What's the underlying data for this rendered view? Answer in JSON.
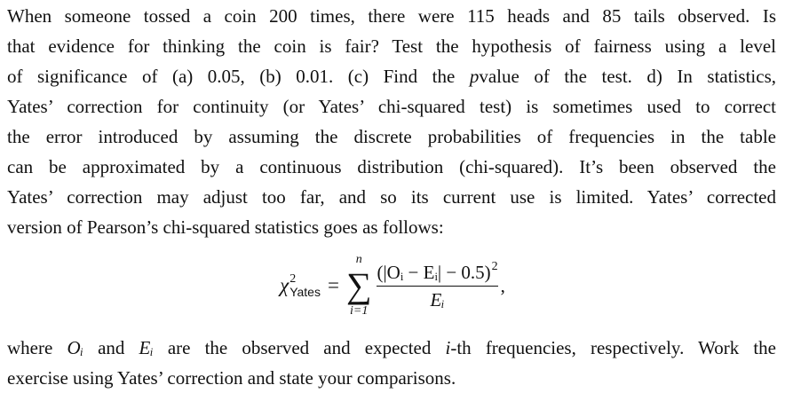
{
  "paragraph1": [
    [
      {
        "t": "When someone tossed a coin 200 times, there were 115 heads and 85 tails observed. Is"
      }
    ],
    [
      {
        "t": "that evidence for thinking the coin is fair? Test the hypothesis of fairness using a level"
      }
    ],
    [
      {
        "t": "of significance of (a) 0.05, (b) 0.01. (c) Find the "
      },
      {
        "t": "p",
        "i": true
      },
      {
        "t": "value of the test. d) In statistics,"
      }
    ],
    [
      {
        "t": "Yates’ correction for continuity (or Yates’ chi-squared test) is sometimes used to correct"
      }
    ],
    [
      {
        "t": "the error introduced by assuming the discrete probabilities of frequencies in the table"
      }
    ],
    [
      {
        "t": "can be approximated by a continuous distribution (chi-squared). It’s been observed the"
      }
    ],
    [
      {
        "t": "Yates’ correction may adjust too far, and so its current use is limited. Yates’ corrected"
      }
    ],
    [
      {
        "t": "version of Pearson’s chi-squared statistics goes as follows:"
      }
    ]
  ],
  "formula": {
    "chi": "χ",
    "chi_sup": "2",
    "chi_sub": "Yates",
    "eq": "=",
    "sum": "∑",
    "upper": "n",
    "lower": "i=1",
    "numerator": "(|Oᵢ − Eᵢ| − 0.5)",
    "num_sup": "2",
    "denominator": "Eᵢ",
    "comma": ","
  },
  "paragraph2": [
    [
      {
        "t": "where "
      },
      {
        "t": "Oᵢ",
        "i": true
      },
      {
        "t": " and "
      },
      {
        "t": "Eᵢ",
        "i": true
      },
      {
        "t": " are the observed and expected "
      },
      {
        "t": "i",
        "i": true
      },
      {
        "t": "-th frequencies, respectively. Work the"
      }
    ],
    [
      {
        "t": "exercise using Yates’ correction and state your comparisons."
      }
    ]
  ]
}
